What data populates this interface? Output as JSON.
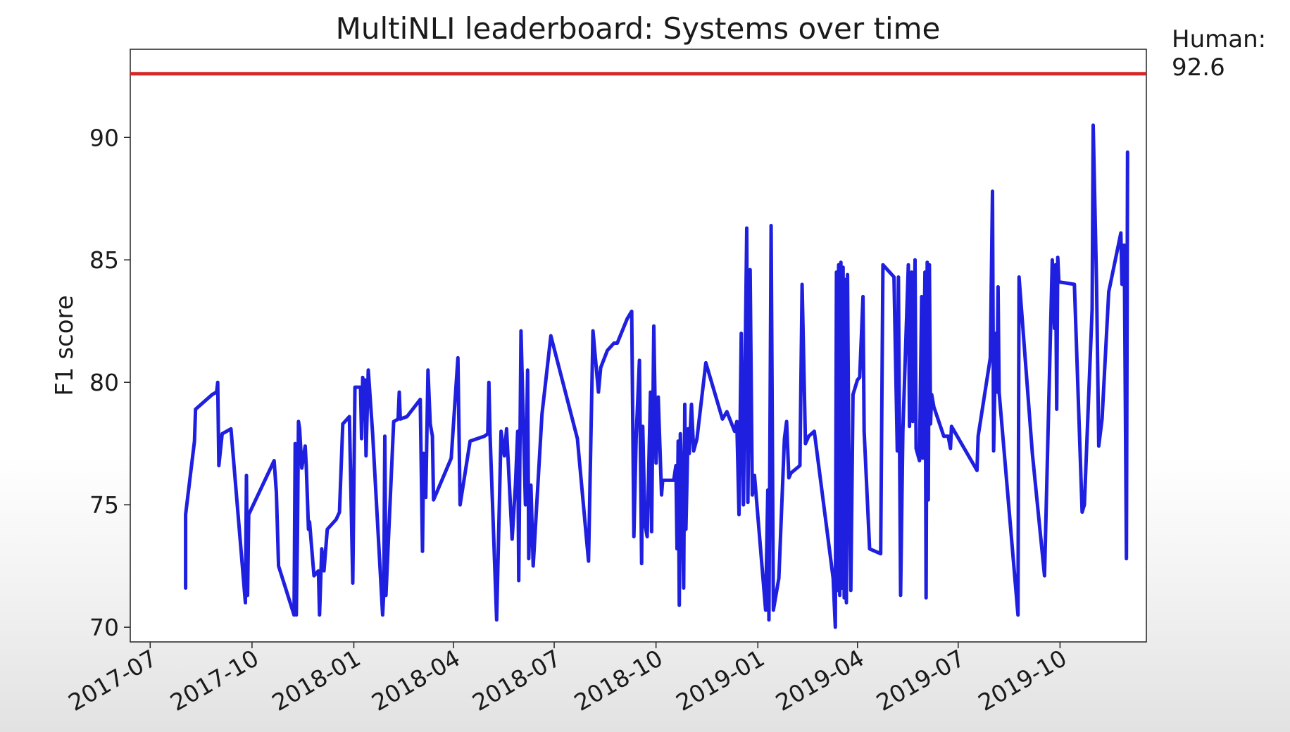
{
  "chart_data": {
    "type": "line",
    "title": "MultiNLI leaderboard: Systems over time",
    "xlabel": "",
    "ylabel": "F1 score",
    "x_tick_labels": [
      "2017-07",
      "2017-10",
      "2018-01",
      "2018-04",
      "2018-07",
      "2018-10",
      "2019-01",
      "2019-04",
      "2019-07",
      "2019-10"
    ],
    "x_ticks": [
      "2017-07-01",
      "2017-10-01",
      "2018-01-01",
      "2018-04-01",
      "2018-07-01",
      "2018-10-01",
      "2019-01-01",
      "2019-04-01",
      "2019-07-01",
      "2019-10-01"
    ],
    "xlim": [
      "2017-06-13",
      "2019-12-18"
    ],
    "ylim": [
      69.4,
      93.6
    ],
    "y_ticks": [
      70,
      75,
      80,
      85,
      90
    ],
    "grid": false,
    "reference_line": {
      "value": 92.6,
      "label_line1": "Human:",
      "label_line2": "92.6",
      "color": "#d62728"
    },
    "series": [
      {
        "name": "",
        "color": "#1f1fe0",
        "points": [
          [
            "2017-08-02",
            71.6
          ],
          [
            "2017-08-02",
            74.6
          ],
          [
            "2017-08-10",
            77.6
          ],
          [
            "2017-08-11",
            78.9
          ],
          [
            "2017-08-26",
            79.5
          ],
          [
            "2017-08-30",
            79.6
          ],
          [
            "2017-08-31",
            80.0
          ],
          [
            "2017-09-01",
            76.6
          ],
          [
            "2017-09-04",
            77.9
          ],
          [
            "2017-09-12",
            78.1
          ],
          [
            "2017-09-25",
            71.0
          ],
          [
            "2017-09-26",
            76.2
          ],
          [
            "2017-09-27",
            71.3
          ],
          [
            "2017-09-28",
            74.6
          ],
          [
            "2017-10-21",
            76.8
          ],
          [
            "2017-10-23",
            75.5
          ],
          [
            "2017-10-25",
            72.5
          ],
          [
            "2017-11-08",
            70.5
          ],
          [
            "2017-11-09",
            77.5
          ],
          [
            "2017-11-10",
            70.5
          ],
          [
            "2017-11-11",
            73.7
          ],
          [
            "2017-11-12",
            78.4
          ],
          [
            "2017-11-13",
            78.1
          ],
          [
            "2017-11-15",
            76.5
          ],
          [
            "2017-11-18",
            77.4
          ],
          [
            "2017-11-19",
            76.6
          ],
          [
            "2017-11-21",
            74.0
          ],
          [
            "2017-11-22",
            74.3
          ],
          [
            "2017-11-26",
            72.1
          ],
          [
            "2017-11-30",
            72.3
          ],
          [
            "2017-12-01",
            70.5
          ],
          [
            "2017-12-03",
            73.2
          ],
          [
            "2017-12-05",
            72.3
          ],
          [
            "2017-12-08",
            74.0
          ],
          [
            "2017-12-16",
            74.4
          ],
          [
            "2017-12-19",
            74.7
          ],
          [
            "2017-12-22",
            78.3
          ],
          [
            "2017-12-28",
            78.6
          ],
          [
            "2017-12-31",
            71.8
          ],
          [
            "2018-01-02",
            79.8
          ],
          [
            "2018-01-07",
            79.8
          ],
          [
            "2018-01-08",
            77.7
          ],
          [
            "2018-01-09",
            80.2
          ],
          [
            "2018-01-10",
            78.5
          ],
          [
            "2018-01-11",
            80.1
          ],
          [
            "2018-01-12",
            77.0
          ],
          [
            "2018-01-14",
            80.5
          ],
          [
            "2018-01-18",
            77.9
          ],
          [
            "2018-01-27",
            70.5
          ],
          [
            "2018-01-28",
            71.4
          ],
          [
            "2018-01-29",
            77.8
          ],
          [
            "2018-01-30",
            71.3
          ],
          [
            "2018-02-06",
            78.4
          ],
          [
            "2018-02-10",
            78.5
          ],
          [
            "2018-02-11",
            79.6
          ],
          [
            "2018-02-12",
            78.5
          ],
          [
            "2018-02-18",
            78.6
          ],
          [
            "2018-03-02",
            79.3
          ],
          [
            "2018-03-04",
            73.1
          ],
          [
            "2018-03-05",
            77.1
          ],
          [
            "2018-03-07",
            75.3
          ],
          [
            "2018-03-09",
            80.5
          ],
          [
            "2018-03-11",
            78.3
          ],
          [
            "2018-03-13",
            77.8
          ],
          [
            "2018-03-14",
            75.2
          ],
          [
            "2018-03-30",
            76.9
          ],
          [
            "2018-04-05",
            81.0
          ],
          [
            "2018-04-07",
            75.0
          ],
          [
            "2018-04-16",
            77.6
          ],
          [
            "2018-04-29",
            77.8
          ],
          [
            "2018-05-02",
            77.9
          ],
          [
            "2018-05-03",
            80.0
          ],
          [
            "2018-05-04",
            77.9
          ],
          [
            "2018-05-10",
            70.3
          ],
          [
            "2018-05-14",
            78.0
          ],
          [
            "2018-05-17",
            77.0
          ],
          [
            "2018-05-19",
            78.1
          ],
          [
            "2018-05-24",
            73.6
          ],
          [
            "2018-05-27",
            75.8
          ],
          [
            "2018-05-29",
            78.0
          ],
          [
            "2018-05-30",
            71.9
          ],
          [
            "2018-06-01",
            82.1
          ],
          [
            "2018-06-05",
            75.0
          ],
          [
            "2018-06-07",
            80.5
          ],
          [
            "2018-06-08",
            72.8
          ],
          [
            "2018-06-10",
            75.8
          ],
          [
            "2018-06-12",
            72.5
          ],
          [
            "2018-06-20",
            78.7
          ],
          [
            "2018-06-28",
            81.9
          ],
          [
            "2018-07-22",
            77.7
          ],
          [
            "2018-08-01",
            72.7
          ],
          [
            "2018-08-05",
            82.1
          ],
          [
            "2018-08-10",
            79.6
          ],
          [
            "2018-08-12",
            80.6
          ],
          [
            "2018-08-18",
            81.3
          ],
          [
            "2018-08-24",
            81.6
          ],
          [
            "2018-08-27",
            81.6
          ],
          [
            "2018-09-05",
            82.6
          ],
          [
            "2018-09-09",
            82.9
          ],
          [
            "2018-09-11",
            73.7
          ],
          [
            "2018-09-13",
            77.7
          ],
          [
            "2018-09-16",
            80.9
          ],
          [
            "2018-09-18",
            72.6
          ],
          [
            "2018-09-19",
            78.2
          ],
          [
            "2018-09-21",
            74.2
          ],
          [
            "2018-09-23",
            73.7
          ],
          [
            "2018-09-26",
            79.6
          ],
          [
            "2018-09-27",
            73.9
          ],
          [
            "2018-09-29",
            82.3
          ],
          [
            "2018-10-01",
            76.7
          ],
          [
            "2018-10-03",
            79.4
          ],
          [
            "2018-10-06",
            75.4
          ],
          [
            "2018-10-07",
            76.0
          ],
          [
            "2018-10-14",
            76.0
          ],
          [
            "2018-10-17",
            76.0
          ],
          [
            "2018-10-19",
            76.6
          ],
          [
            "2018-10-20",
            73.2
          ],
          [
            "2018-10-21",
            77.6
          ],
          [
            "2018-10-22",
            70.9
          ],
          [
            "2018-10-23",
            77.9
          ],
          [
            "2018-10-24",
            76.5
          ],
          [
            "2018-10-26",
            71.6
          ],
          [
            "2018-10-27",
            79.1
          ],
          [
            "2018-10-28",
            74.0
          ],
          [
            "2018-10-30",
            78.1
          ],
          [
            "2018-10-31",
            77.1
          ],
          [
            "2018-11-02",
            79.1
          ],
          [
            "2018-11-04",
            77.2
          ],
          [
            "2018-11-07",
            77.7
          ],
          [
            "2018-11-15",
            80.8
          ],
          [
            "2018-11-30",
            78.5
          ],
          [
            "2018-12-04",
            78.8
          ],
          [
            "2018-12-11",
            78.0
          ],
          [
            "2018-12-13",
            78.4
          ],
          [
            "2018-12-15",
            74.6
          ],
          [
            "2018-12-17",
            82.0
          ],
          [
            "2018-12-19",
            75.0
          ],
          [
            "2018-12-22",
            86.3
          ],
          [
            "2018-12-23",
            75.1
          ],
          [
            "2018-12-25",
            84.6
          ],
          [
            "2018-12-27",
            75.4
          ],
          [
            "2018-12-29",
            76.2
          ],
          [
            "2019-01-08",
            70.7
          ],
          [
            "2019-01-10",
            75.6
          ],
          [
            "2019-01-11",
            70.3
          ],
          [
            "2019-01-13",
            86.4
          ],
          [
            "2019-01-15",
            70.7
          ],
          [
            "2019-01-20",
            72.0
          ],
          [
            "2019-01-25",
            77.7
          ],
          [
            "2019-01-27",
            78.4
          ],
          [
            "2019-01-29",
            76.1
          ],
          [
            "2019-01-31",
            76.3
          ],
          [
            "2019-02-08",
            76.6
          ],
          [
            "2019-02-10",
            84.0
          ],
          [
            "2019-02-13",
            77.5
          ],
          [
            "2019-02-16",
            77.8
          ],
          [
            "2019-02-21",
            78.0
          ],
          [
            "2019-03-10",
            72.0
          ],
          [
            "2019-03-12",
            70.0
          ],
          [
            "2019-03-13",
            84.5
          ],
          [
            "2019-03-14",
            71.5
          ],
          [
            "2019-03-15",
            84.8
          ],
          [
            "2019-03-16",
            71.3
          ],
          [
            "2019-03-17",
            84.9
          ],
          [
            "2019-03-18",
            71.6
          ],
          [
            "2019-03-19",
            84.7
          ],
          [
            "2019-03-20",
            71.2
          ],
          [
            "2019-03-21",
            84.2
          ],
          [
            "2019-03-22",
            71.0
          ],
          [
            "2019-03-23",
            84.4
          ],
          [
            "2019-03-24",
            77.7
          ],
          [
            "2019-03-26",
            71.5
          ],
          [
            "2019-03-28",
            79.5
          ],
          [
            "2019-04-01",
            80.1
          ],
          [
            "2019-04-03",
            80.2
          ],
          [
            "2019-04-06",
            83.5
          ],
          [
            "2019-04-07",
            78.0
          ],
          [
            "2019-04-12",
            73.2
          ],
          [
            "2019-04-22",
            73.0
          ],
          [
            "2019-04-24",
            84.8
          ],
          [
            "2019-05-04",
            84.3
          ],
          [
            "2019-05-07",
            77.2
          ],
          [
            "2019-05-08",
            84.3
          ],
          [
            "2019-05-10",
            71.3
          ],
          [
            "2019-05-12",
            78.0
          ],
          [
            "2019-05-17",
            84.8
          ],
          [
            "2019-05-18",
            78.2
          ],
          [
            "2019-05-20",
            84.5
          ],
          [
            "2019-05-21",
            78.4
          ],
          [
            "2019-05-23",
            85.0
          ],
          [
            "2019-05-24",
            77.3
          ],
          [
            "2019-05-27",
            76.8
          ],
          [
            "2019-05-29",
            83.5
          ],
          [
            "2019-05-30",
            76.9
          ],
          [
            "2019-06-01",
            84.5
          ],
          [
            "2019-06-02",
            71.2
          ],
          [
            "2019-06-03",
            84.9
          ],
          [
            "2019-06-04",
            75.2
          ],
          [
            "2019-06-05",
            84.8
          ],
          [
            "2019-06-06",
            78.3
          ],
          [
            "2019-06-07",
            79.5
          ],
          [
            "2019-06-09",
            79.0
          ],
          [
            "2019-06-18",
            77.8
          ],
          [
            "2019-06-22",
            77.8
          ],
          [
            "2019-06-24",
            77.3
          ],
          [
            "2019-06-25",
            78.2
          ],
          [
            "2019-07-18",
            76.4
          ],
          [
            "2019-07-19",
            77.8
          ],
          [
            "2019-07-30",
            81.0
          ],
          [
            "2019-08-01",
            87.8
          ],
          [
            "2019-08-02",
            77.2
          ],
          [
            "2019-08-04",
            82.0
          ],
          [
            "2019-08-05",
            79.6
          ],
          [
            "2019-08-06",
            83.9
          ],
          [
            "2019-08-07",
            79.6
          ],
          [
            "2019-08-24",
            70.5
          ],
          [
            "2019-08-25",
            84.3
          ],
          [
            "2019-09-06",
            77.1
          ],
          [
            "2019-09-17",
            72.1
          ],
          [
            "2019-09-24",
            85.0
          ],
          [
            "2019-09-26",
            82.2
          ],
          [
            "2019-09-27",
            84.8
          ],
          [
            "2019-09-28",
            78.9
          ],
          [
            "2019-09-29",
            85.1
          ],
          [
            "2019-09-30",
            84.1
          ],
          [
            "2019-10-14",
            84.0
          ],
          [
            "2019-10-21",
            74.7
          ],
          [
            "2019-10-23",
            75.0
          ],
          [
            "2019-10-30",
            83.0
          ],
          [
            "2019-10-31",
            90.5
          ],
          [
            "2019-11-03",
            84.0
          ],
          [
            "2019-11-05",
            77.4
          ],
          [
            "2019-11-08",
            78.5
          ],
          [
            "2019-11-14",
            83.7
          ],
          [
            "2019-11-25",
            86.1
          ],
          [
            "2019-11-26",
            84.0
          ],
          [
            "2019-11-28",
            85.6
          ],
          [
            "2019-11-30",
            72.8
          ],
          [
            "2019-12-01",
            89.4
          ]
        ]
      }
    ]
  }
}
